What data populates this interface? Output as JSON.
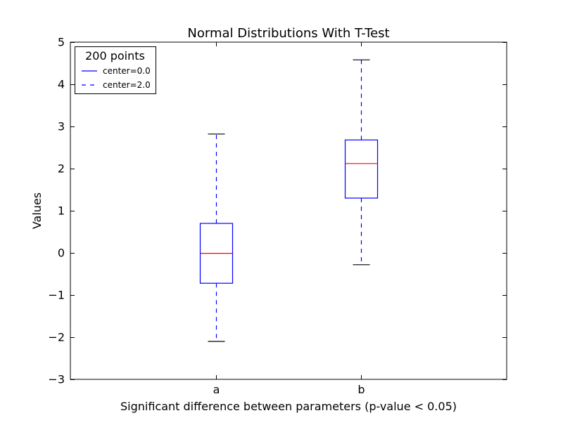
{
  "chart_data": {
    "type": "box",
    "title": "Normal Distributions With T-Test",
    "xlabel": "Significant difference between parameters (p-value < 0.05)",
    "ylabel": "Values",
    "ylim": [
      -3,
      5
    ],
    "yticks": [
      -3,
      -2,
      -1,
      0,
      1,
      2,
      3,
      4,
      5
    ],
    "ytick_labels": [
      "−3",
      "−2",
      "−1",
      "0",
      "1",
      "2",
      "3",
      "4",
      "5"
    ],
    "categories": [
      "a",
      "b"
    ],
    "boxes": [
      {
        "category": "a",
        "whisker_low": -2.1,
        "q1": -0.72,
        "median": -0.01,
        "q3": 0.7,
        "whisker_high": 2.82
      },
      {
        "category": "b",
        "whisker_low": -0.28,
        "q1": 1.3,
        "median": 2.12,
        "q3": 2.68,
        "whisker_high": 4.58
      }
    ],
    "legend": {
      "title": "200 points",
      "entries": [
        {
          "label": "center=0.0",
          "style": "solid"
        },
        {
          "label": "center=2.0",
          "style": "dashed"
        }
      ],
      "location": "upper-left"
    },
    "colors": {
      "box": "#0000ff",
      "whisker": "#0000ff",
      "median": "#ff0000",
      "cap": "#000000",
      "axes": "#000000"
    },
    "grid": false
  }
}
